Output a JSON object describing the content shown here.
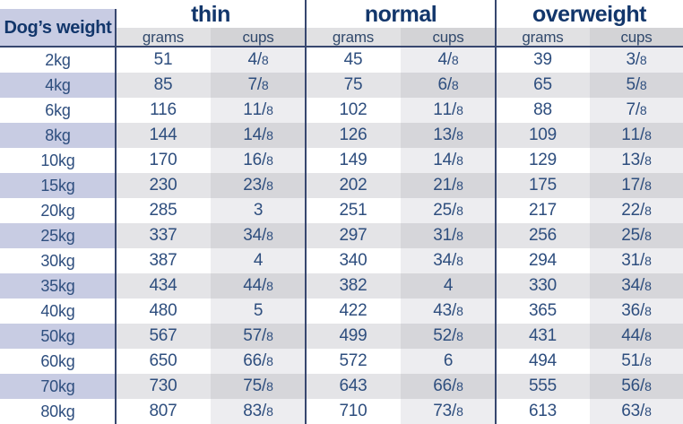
{
  "header": {
    "weight_column_label": "Dog’s weight",
    "groups": [
      "thin",
      "normal",
      "overweight"
    ],
    "unit_labels": {
      "grams": "grams",
      "cups": "cups"
    }
  },
  "rows": [
    {
      "weight": "2kg",
      "thin_grams": "51",
      "thin_cups": "4/8",
      "normal_grams": "45",
      "normal_cups": "4/8",
      "overweight_grams": "39",
      "overweight_cups": "3/8"
    },
    {
      "weight": "4kg",
      "thin_grams": "85",
      "thin_cups": "7/8",
      "normal_grams": "75",
      "normal_cups": "6/8",
      "overweight_grams": "65",
      "overweight_cups": "5/8"
    },
    {
      "weight": "6kg",
      "thin_grams": "116",
      "thin_cups": "1 1/8",
      "normal_grams": "102",
      "normal_cups": "1 1/8",
      "overweight_grams": "88",
      "overweight_cups": "7/8"
    },
    {
      "weight": "8kg",
      "thin_grams": "144",
      "thin_cups": "1 4/8",
      "normal_grams": "126",
      "normal_cups": "1 3/8",
      "overweight_grams": "109",
      "overweight_cups": "1 1/8"
    },
    {
      "weight": "10kg",
      "thin_grams": "170",
      "thin_cups": "1 6/8",
      "normal_grams": "149",
      "normal_cups": "1 4/8",
      "overweight_grams": "129",
      "overweight_cups": "1 3/8"
    },
    {
      "weight": "15kg",
      "thin_grams": "230",
      "thin_cups": "2 3/8",
      "normal_grams": "202",
      "normal_cups": "2 1/8",
      "overweight_grams": "175",
      "overweight_cups": "1 7/8"
    },
    {
      "weight": "20kg",
      "thin_grams": "285",
      "thin_cups": "3",
      "normal_grams": "251",
      "normal_cups": "2 5/8",
      "overweight_grams": "217",
      "overweight_cups": "2 2/8"
    },
    {
      "weight": "25kg",
      "thin_grams": "337",
      "thin_cups": "3 4/8",
      "normal_grams": "297",
      "normal_cups": "3 1/8",
      "overweight_grams": "256",
      "overweight_cups": "2 5/8"
    },
    {
      "weight": "30kg",
      "thin_grams": "387",
      "thin_cups": "4",
      "normal_grams": "340",
      "normal_cups": "3 4/8",
      "overweight_grams": "294",
      "overweight_cups": "3 1/8"
    },
    {
      "weight": "35kg",
      "thin_grams": "434",
      "thin_cups": "4 4/8",
      "normal_grams": "382",
      "normal_cups": "4",
      "overweight_grams": "330",
      "overweight_cups": "3 4/8"
    },
    {
      "weight": "40kg",
      "thin_grams": "480",
      "thin_cups": "5",
      "normal_grams": "422",
      "normal_cups": "4 3/8",
      "overweight_grams": "365",
      "overweight_cups": "3 6/8"
    },
    {
      "weight": "50kg",
      "thin_grams": "567",
      "thin_cups": "5 7/8",
      "normal_grams": "499",
      "normal_cups": "5 2/8",
      "overweight_grams": "431",
      "overweight_cups": "4 4/8"
    },
    {
      "weight": "60kg",
      "thin_grams": "650",
      "thin_cups": "6 6/8",
      "normal_grams": "572",
      "normal_cups": "6",
      "overweight_grams": "494",
      "overweight_cups": "5 1/8"
    },
    {
      "weight": "70kg",
      "thin_grams": "730",
      "thin_cups": "7 5/8",
      "normal_grams": "643",
      "normal_cups": "6 6/8",
      "overweight_grams": "555",
      "overweight_cups": "5 6/8"
    },
    {
      "weight": "80kg",
      "thin_grams": "807",
      "thin_cups": "8 3/8",
      "normal_grams": "710",
      "normal_cups": "7 3/8",
      "overweight_grams": "613",
      "overweight_cups": "6 3/8"
    }
  ],
  "colors": {
    "header_navy": "#12366b",
    "data_navy": "#2e4e7e",
    "lavender": "#c8cce3",
    "row_gray": "#e4e4e7",
    "cups_light": "#ededf0",
    "cups_dark": "#d6d6da",
    "line_navy": "#37476f"
  }
}
